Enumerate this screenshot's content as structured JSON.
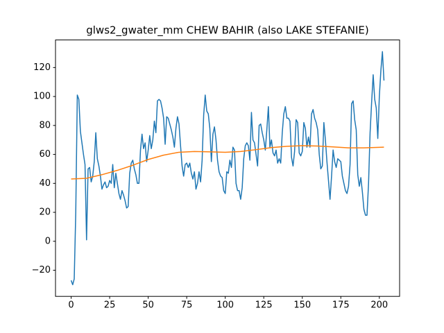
{
  "chart_data": {
    "type": "line",
    "title": "glws2_gwater_mm CHEW BAHIR (also LAKE STEFANIE)",
    "series": [
      {
        "color": "#1f77b4",
        "x": [
          0,
          1,
          2,
          3,
          4,
          5,
          6,
          7,
          8,
          9,
          10,
          11,
          12,
          13,
          14,
          15,
          16,
          17,
          18,
          19,
          20,
          21,
          22,
          23,
          24,
          25,
          26,
          27,
          28,
          29,
          30,
          31,
          32,
          33,
          34,
          35,
          36,
          37,
          38,
          39,
          40,
          41,
          42,
          43,
          44,
          45,
          46,
          47,
          48,
          49,
          50,
          51,
          52,
          53,
          54,
          55,
          56,
          57,
          58,
          59,
          60,
          61,
          62,
          63,
          64,
          65,
          66,
          67,
          68,
          69,
          70,
          71,
          72,
          73,
          74,
          75,
          76,
          77,
          78,
          79,
          80,
          81,
          82,
          83,
          84,
          85,
          86,
          87,
          88,
          89,
          90,
          91,
          92,
          93,
          94,
          95,
          96,
          97,
          98,
          99,
          100,
          101,
          102,
          103,
          104,
          105,
          106,
          107,
          108,
          109,
          110,
          111,
          112,
          113,
          114,
          115,
          116,
          117,
          118,
          119,
          120,
          121,
          122,
          123,
          124,
          125,
          126,
          127,
          128,
          129,
          130,
          131,
          132,
          133,
          134,
          135,
          136,
          137,
          138,
          139,
          140,
          141,
          142,
          143,
          144,
          145,
          146,
          147,
          148,
          149,
          150,
          151,
          152,
          153,
          154,
          155,
          156,
          157,
          158,
          159,
          160,
          161,
          162,
          163,
          164,
          165,
          166,
          167,
          168,
          169,
          170,
          171,
          172,
          173,
          174,
          175,
          176,
          177,
          178,
          179,
          180,
          181,
          182,
          183,
          184,
          185,
          186,
          187,
          188,
          189,
          190,
          191,
          192,
          193,
          194,
          195,
          196,
          197,
          198,
          199,
          200,
          201,
          202,
          203
        ],
        "values": [
          -27,
          -30,
          -26,
          20,
          101,
          98,
          76,
          68,
          60,
          53,
          1,
          50,
          51,
          41,
          45,
          55,
          75,
          57,
          52,
          45,
          36,
          39,
          41,
          37,
          38,
          42,
          40,
          53,
          37,
          47,
          40,
          33,
          29,
          35,
          32,
          28,
          23,
          24,
          47,
          54,
          56,
          50,
          46,
          40,
          40,
          63,
          74,
          64,
          68,
          55,
          63,
          73,
          64,
          70,
          83,
          75,
          97,
          98,
          97,
          92,
          85,
          67,
          86,
          85,
          81,
          77,
          72,
          65,
          78,
          86,
          81,
          66,
          52,
          45,
          53,
          54,
          51,
          54,
          47,
          43,
          48,
          36,
          40,
          48,
          41,
          56,
          87,
          101,
          90,
          88,
          78,
          55,
          74,
          79,
          70,
          56,
          48,
          45,
          44,
          35,
          33,
          48,
          47,
          56,
          51,
          65,
          63,
          40,
          35,
          35,
          29,
          37,
          57,
          66,
          68,
          66,
          56,
          89,
          70,
          68,
          60,
          52,
          80,
          81,
          75,
          70,
          63,
          77,
          93,
          65,
          70,
          61,
          59,
          63,
          54,
          57,
          54,
          75,
          88,
          93,
          85,
          85,
          83,
          58,
          52,
          62,
          84,
          82,
          61,
          59,
          62,
          82,
          78,
          65,
          72,
          65,
          88,
          91,
          85,
          82,
          77,
          60,
          50,
          52,
          82,
          70,
          55,
          42,
          29,
          45,
          63,
          55,
          51,
          57,
          56,
          55,
          45,
          40,
          35,
          33,
          38,
          53,
          95,
          97,
          84,
          77,
          46,
          38,
          44,
          34,
          22,
          18,
          18,
          40,
          75,
          96,
          115,
          98,
          92,
          71,
          100,
          118,
          131,
          111
        ]
      },
      {
        "color": "#ff7f0e",
        "x": [
          0,
          10,
          20,
          30,
          40,
          50,
          60,
          70,
          80,
          90,
          100,
          110,
          120,
          130,
          140,
          150,
          160,
          170,
          180,
          190,
          203
        ],
        "values": [
          43,
          43.5,
          46,
          49,
          52.5,
          56.5,
          59.5,
          61.5,
          62,
          61.8,
          61.5,
          62,
          63.3,
          64.7,
          65.6,
          66,
          65.8,
          65.2,
          64.5,
          64.5,
          65
        ]
      }
    ],
    "xlim": [
      -10.15,
      213.15
    ],
    "xticks": [
      0,
      25,
      50,
      75,
      100,
      125,
      150,
      175,
      200
    ],
    "ylim": [
      -38.05,
      139.05
    ],
    "yticks": [
      {
        "value": -20,
        "label": "−20"
      },
      0,
      20,
      40,
      60,
      80,
      100,
      120
    ]
  }
}
